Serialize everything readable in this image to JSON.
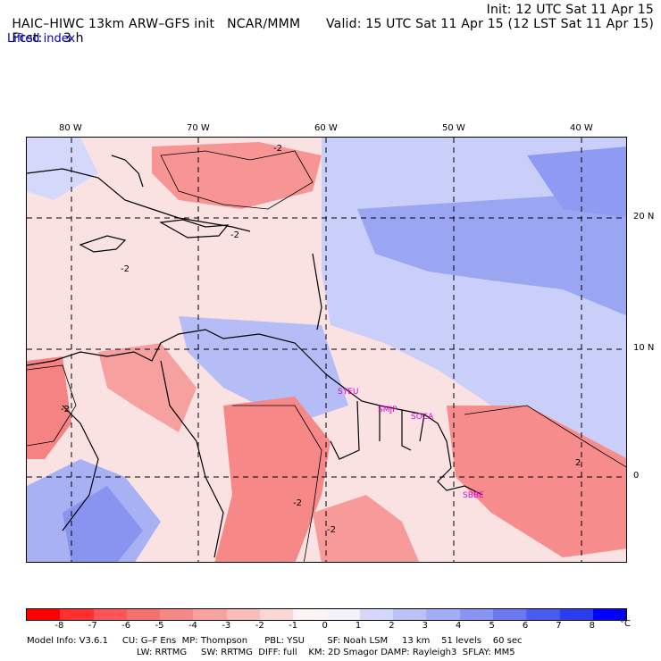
{
  "header": {
    "model": "HAIC–HIWC 13km ARW–GFS init",
    "org": "NCAR/MMM",
    "init": "Init: 12 UTC Sat 11 Apr 15",
    "fcst_label": "Fcst:",
    "fcst_value": "3 h",
    "valid": "Valid: 15 UTC Sat 11 Apr 15 (12 LST Sat 11 Apr 15)",
    "field": "Lifted index"
  },
  "map": {
    "lon_labels": [
      "80 W",
      "70 W",
      "60 W",
      "50 W",
      "40 W"
    ],
    "lat_labels": [
      "20 N",
      "10 N",
      "0"
    ],
    "stations": [
      "SYEU",
      "SMJP",
      "SOCA",
      "SBBE"
    ],
    "contour_labels": [
      "-2",
      "-2",
      "-2",
      "-2",
      "-2",
      "-2",
      "2"
    ],
    "colors": {
      "strong_neg": "#ff4040",
      "neg": "#f78a8a",
      "weak_neg": "#fbcaca",
      "neutral": "#fff4f4",
      "weak_pos": "#d8dcfa",
      "pos": "#aab3f3",
      "strong_pos": "#7f8df0"
    }
  },
  "colorbar": {
    "unit": "°C",
    "ticks": [
      "-8",
      "-7",
      "-6",
      "-5",
      "-4",
      "-3",
      "-2",
      "-1",
      "0",
      "1",
      "2",
      "3",
      "4",
      "5",
      "6",
      "7",
      "8"
    ],
    "colors": [
      "#ff0000",
      "#ff3030",
      "#ff5555",
      "#f77070",
      "#f78888",
      "#f9a2a2",
      "#fbbcbc",
      "#fdd6d6",
      "#fff4f4",
      "#f4f4ff",
      "#d4d8fb",
      "#bcc2f8",
      "#a3acf5",
      "#8a96f2",
      "#6b79f0",
      "#4a5cf0",
      "#2a3ef0",
      "#0000ff"
    ]
  },
  "footer": {
    "line1": "Model Info: V3.6.1     CU: G–F Ens  MP: Thompson      PBL: YSU        SF: Noah LSM     13 km    51 levels    60 sec",
    "line2": "LW: RRTMG     SW: RRTMG  DIFF: full    KM: 2D Smagor DAMP: Rayleigh3  SFLAY: MM5"
  }
}
